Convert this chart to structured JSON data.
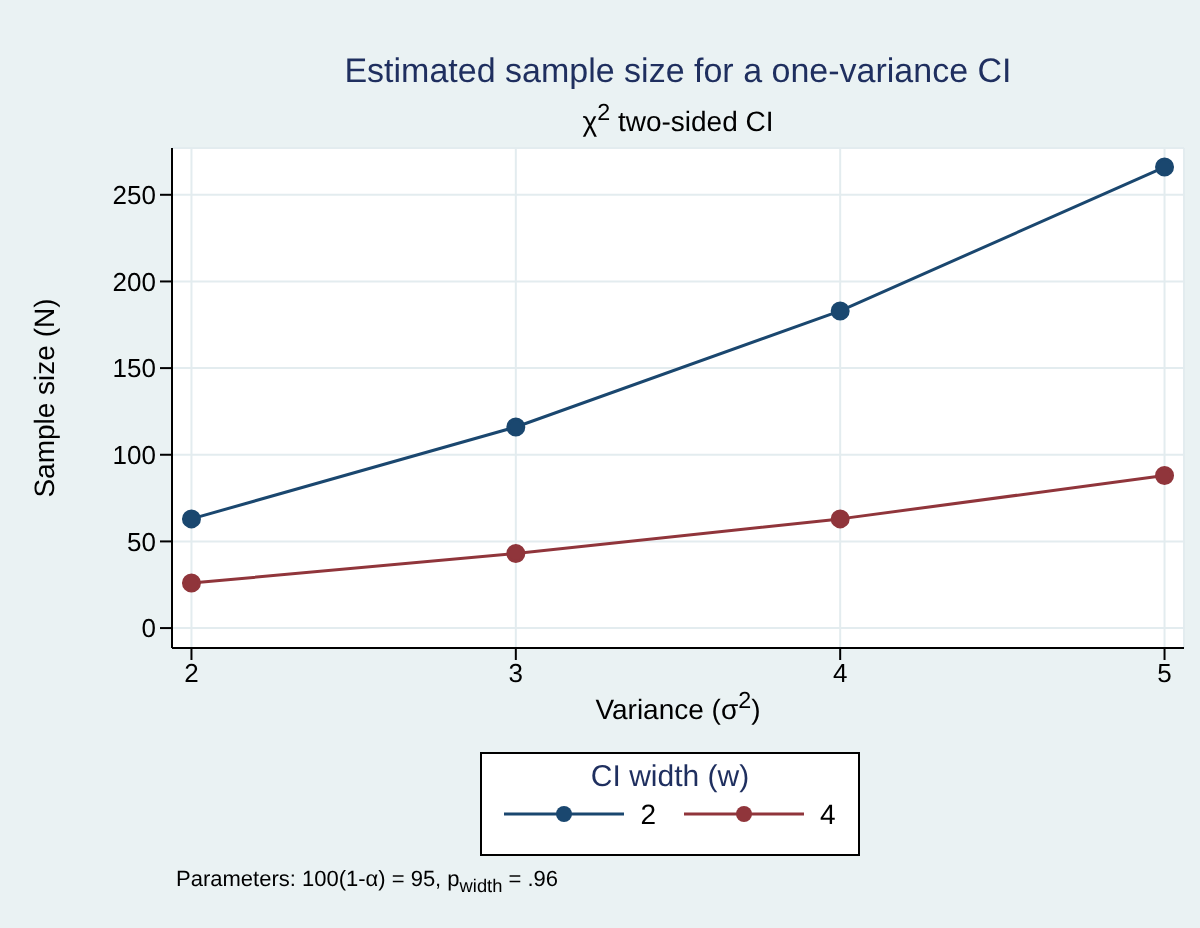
{
  "chart_data": {
    "type": "line",
    "title": "Estimated sample size for a one-variance CI",
    "subtitle": "χ$^{2}$ two-sided CI",
    "xlabel": "Variance (σ$^{2}$)",
    "ylabel": "Sample size (N)",
    "legend_title": "CI width (w)",
    "x": [
      2,
      3,
      4,
      5
    ],
    "series": [
      {
        "name": "2",
        "color": "#1a476f",
        "values": [
          63,
          116,
          183,
          266
        ]
      },
      {
        "name": "4",
        "color": "#90353b",
        "values": [
          26,
          43,
          63,
          88
        ]
      }
    ],
    "xlim": [
      1.94,
      5.06
    ],
    "xticks": [
      2,
      3,
      4,
      5
    ],
    "ylim": [
      -11.5,
      277
    ],
    "yticks": [
      0,
      50,
      100,
      150,
      200,
      250
    ],
    "grid": true,
    "legend": "bottom",
    "marker": "circle",
    "line_style": "solid",
    "annotations": [
      "Parameters: 100(1-α) = 95, p$_{width}$ = .96"
    ]
  }
}
